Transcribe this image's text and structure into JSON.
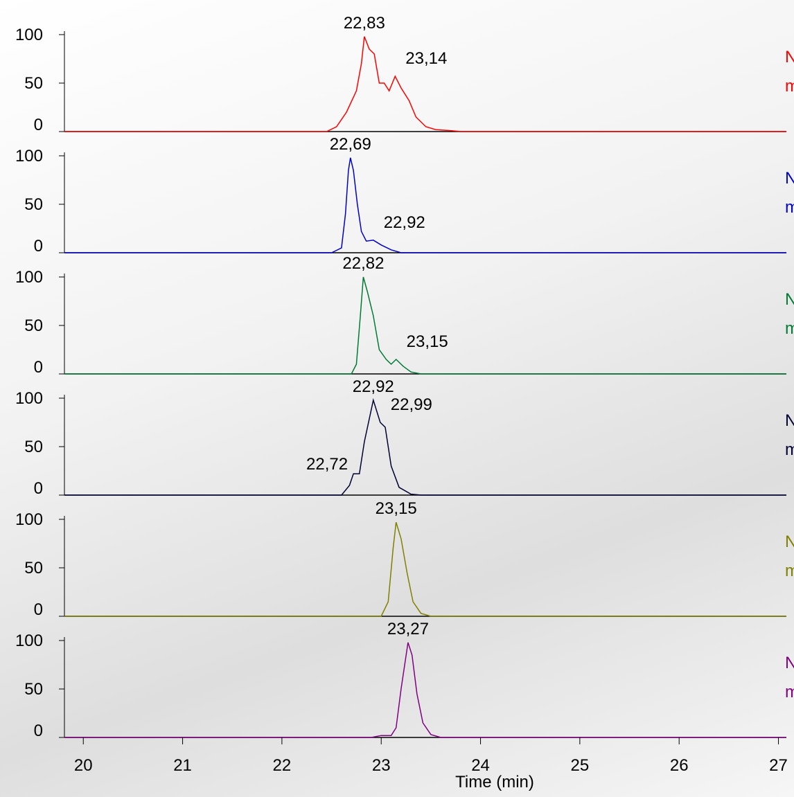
{
  "chart_data": [
    {
      "type": "line",
      "color": "#ff0000",
      "xlim": [
        19.81,
        27.08
      ],
      "ylim": [
        0,
        100
      ],
      "yticks": [
        0,
        50,
        100
      ],
      "labels": [
        "N",
        "m"
      ],
      "x": [
        19.81,
        22.45,
        22.55,
        22.65,
        22.75,
        22.8,
        22.83,
        22.88,
        22.93,
        22.98,
        23.03,
        23.08,
        23.14,
        23.2,
        23.28,
        23.35,
        23.45,
        23.55,
        23.7,
        23.8,
        27.08
      ],
      "values": [
        0,
        0,
        5,
        20,
        42,
        70,
        98,
        85,
        80,
        50,
        50,
        42,
        57,
        45,
        32,
        15,
        5,
        2,
        1,
        0,
        0
      ],
      "peaks": [
        {
          "value": 22.83,
          "label": "22,83"
        },
        {
          "value": 23.14,
          "label": "23,14"
        }
      ]
    },
    {
      "type": "line",
      "color": "#0000cc",
      "xlim": [
        19.81,
        27.08
      ],
      "ylim": [
        0,
        100
      ],
      "yticks": [
        0,
        50,
        100
      ],
      "labels": [
        "N",
        "m"
      ],
      "x": [
        19.81,
        22.5,
        22.6,
        22.64,
        22.67,
        22.69,
        22.72,
        22.76,
        22.8,
        22.85,
        22.92,
        23.0,
        23.1,
        23.2,
        27.08
      ],
      "values": [
        0,
        0,
        5,
        40,
        85,
        98,
        85,
        50,
        22,
        12,
        13,
        8,
        3,
        0,
        0
      ],
      "peaks": [
        {
          "value": 22.69,
          "label": "22,69"
        },
        {
          "value": 22.92,
          "label": "22,92"
        }
      ]
    },
    {
      "type": "line",
      "color": "#007a33",
      "xlim": [
        19.81,
        27.08
      ],
      "ylim": [
        0,
        100
      ],
      "yticks": [
        0,
        50,
        100
      ],
      "labels": [
        "N",
        "m"
      ],
      "x": [
        19.81,
        22.7,
        22.75,
        22.79,
        22.82,
        22.86,
        22.92,
        22.98,
        23.05,
        23.1,
        23.15,
        23.22,
        23.3,
        23.4,
        27.08
      ],
      "values": [
        0,
        0,
        10,
        60,
        100,
        85,
        60,
        25,
        15,
        10,
        15,
        8,
        2,
        0,
        0
      ],
      "peaks": [
        {
          "value": 22.82,
          "label": "22,82"
        },
        {
          "value": 23.15,
          "label": "23,15"
        }
      ]
    },
    {
      "type": "line",
      "color": "#000033",
      "xlim": [
        19.81,
        27.08
      ],
      "ylim": [
        0,
        100
      ],
      "yticks": [
        0,
        50,
        100
      ],
      "labels": [
        "N",
        "m"
      ],
      "x": [
        19.81,
        22.6,
        22.68,
        22.72,
        22.78,
        22.83,
        22.92,
        22.99,
        23.04,
        23.1,
        23.18,
        23.3,
        23.4,
        27.08
      ],
      "values": [
        0,
        0,
        10,
        22,
        22,
        55,
        98,
        75,
        70,
        30,
        8,
        1,
        0,
        0
      ],
      "peaks": [
        {
          "value": 22.92,
          "label": "22,92"
        },
        {
          "value": 22.99,
          "label": "22,99"
        },
        {
          "value": 22.72,
          "label": "22,72"
        }
      ]
    },
    {
      "type": "line",
      "color": "#808000",
      "xlim": [
        19.81,
        27.08
      ],
      "ylim": [
        0,
        100
      ],
      "yticks": [
        0,
        50,
        100
      ],
      "labels": [
        "N",
        "m"
      ],
      "x": [
        19.81,
        23.0,
        23.07,
        23.12,
        23.15,
        23.2,
        23.26,
        23.32,
        23.4,
        23.5,
        27.08
      ],
      "values": [
        0,
        0,
        15,
        70,
        97,
        80,
        45,
        15,
        3,
        0,
        0
      ],
      "peaks": [
        {
          "value": 23.15,
          "label": "23,15"
        }
      ]
    },
    {
      "type": "line",
      "color": "#800080",
      "xlim": [
        19.81,
        27.08
      ],
      "ylim": [
        0,
        100
      ],
      "yticks": [
        0,
        50,
        100
      ],
      "labels": [
        "N",
        "m"
      ],
      "x": [
        19.81,
        22.9,
        23.0,
        23.1,
        23.15,
        23.2,
        23.27,
        23.31,
        23.36,
        23.42,
        23.5,
        23.6,
        27.08
      ],
      "values": [
        0,
        0,
        2,
        2,
        10,
        50,
        98,
        85,
        45,
        15,
        3,
        0,
        0
      ],
      "peaks": [
        {
          "value": 23.27,
          "label": "23,27"
        }
      ],
      "xticks": [
        20,
        21,
        22,
        23,
        24,
        25,
        26,
        27
      ],
      "xlabel": "Time (min)"
    }
  ]
}
